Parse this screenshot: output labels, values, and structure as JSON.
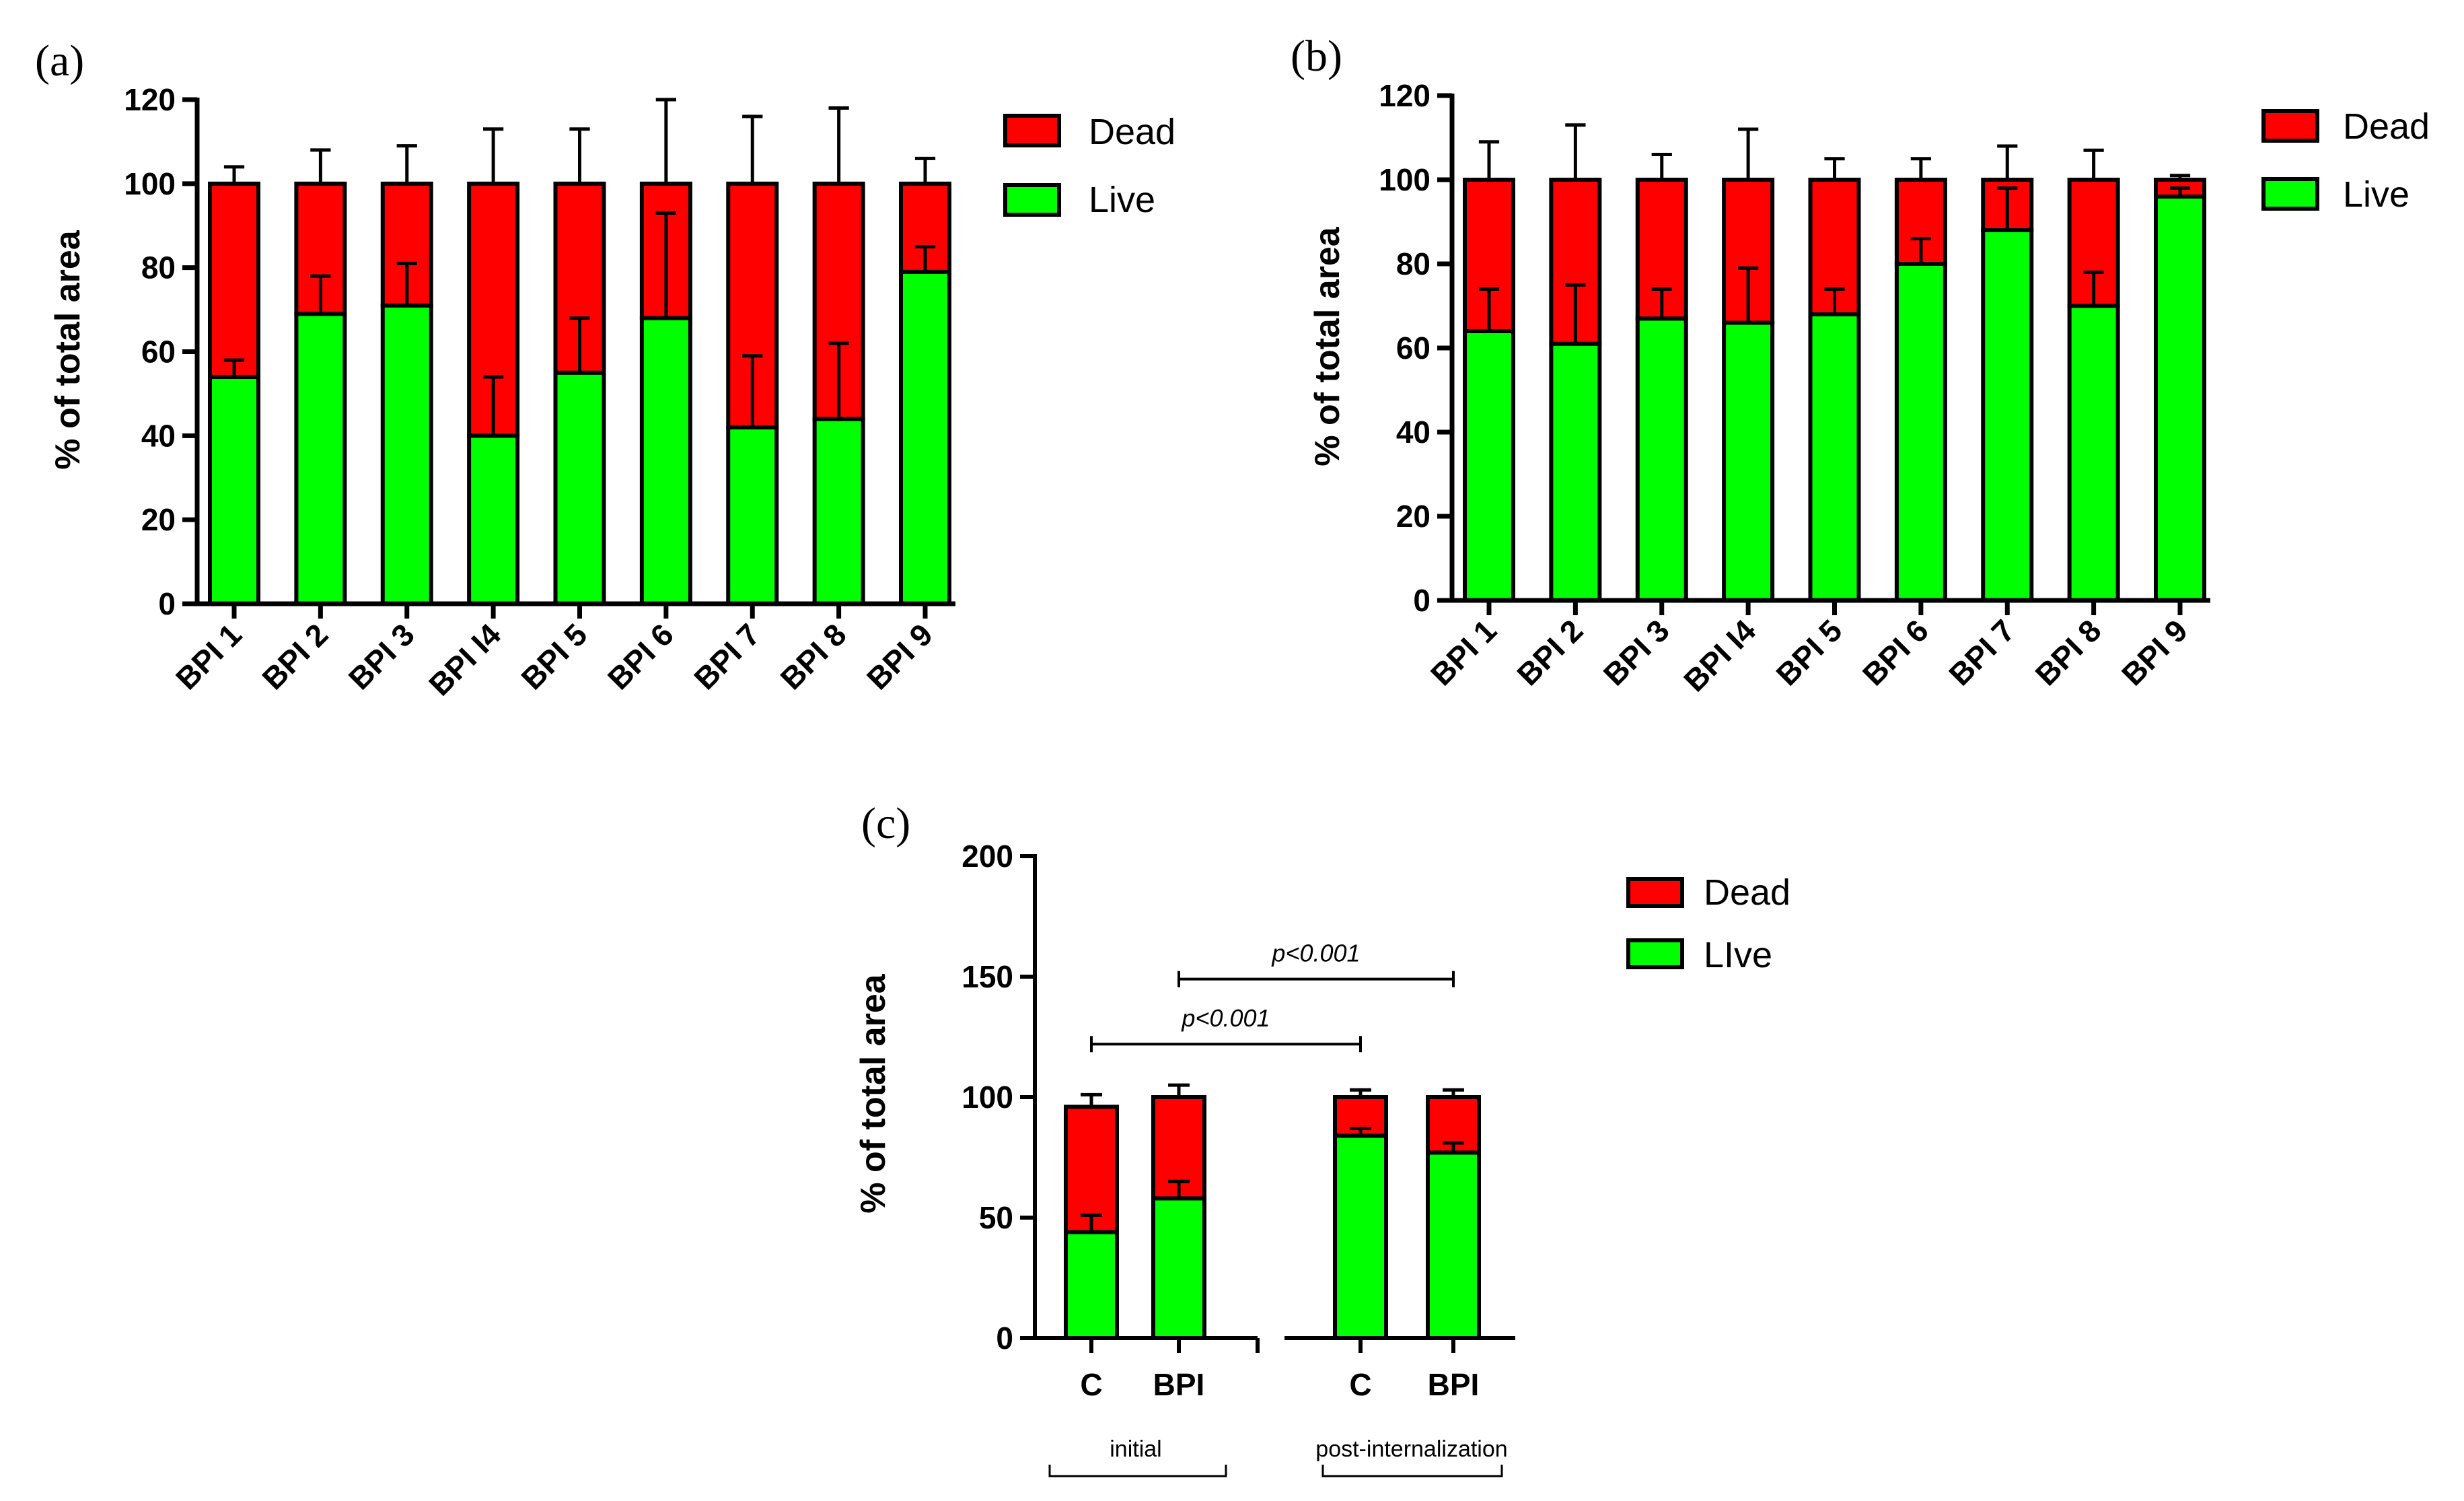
{
  "colors": {
    "dead": "#ff0000",
    "live": "#00ff00",
    "axis": "#000000"
  },
  "chart_data": [
    {
      "type": "bar",
      "stacked": true,
      "panel_label": "(a)",
      "title": "",
      "xlabel": "",
      "ylabel": "% of total area",
      "ylim": [
        0,
        120
      ],
      "yticks": [
        0,
        20,
        40,
        60,
        80,
        100,
        120
      ],
      "grid": false,
      "legend_position": "top-right",
      "categories": [
        "BPI 1",
        "BPI 2",
        "BPI 3",
        "BPI I4",
        "BPI 5",
        "BPI 6",
        "BPI 7",
        "BPI 8",
        "BPI 9"
      ],
      "series": [
        {
          "name": "Live",
          "values": [
            54,
            69,
            71,
            40,
            55,
            68,
            42,
            44,
            79
          ],
          "error": [
            4,
            9,
            10,
            14,
            13,
            25,
            17,
            18,
            6
          ]
        },
        {
          "name": "Dead",
          "values": [
            46,
            31,
            29,
            60,
            45,
            32,
            58,
            56,
            21
          ],
          "error": [
            4,
            8,
            9,
            13,
            13,
            20,
            16,
            18,
            6
          ]
        }
      ]
    },
    {
      "type": "bar",
      "stacked": true,
      "panel_label": "(b)",
      "title": "",
      "xlabel": "",
      "ylabel": "% of total area",
      "ylim": [
        0,
        120
      ],
      "yticks": [
        0,
        20,
        40,
        60,
        80,
        100,
        120
      ],
      "grid": false,
      "legend_position": "top-right",
      "categories": [
        "BPI 1",
        "BPI 2",
        "BPI 3",
        "BPI I4",
        "BPI 5",
        "BPI 6",
        "BPI 7",
        "BPI 8",
        "BPI 9"
      ],
      "series": [
        {
          "name": "Live",
          "values": [
            64,
            61,
            67,
            66,
            68,
            80,
            88,
            70,
            96
          ],
          "error": [
            10,
            14,
            7,
            13,
            6,
            6,
            10,
            8,
            2
          ]
        },
        {
          "name": "Dead",
          "values": [
            36,
            39,
            33,
            34,
            32,
            20,
            12,
            30,
            4
          ],
          "error": [
            9,
            13,
            6,
            12,
            5,
            5,
            8,
            7,
            1
          ]
        }
      ]
    },
    {
      "type": "bar",
      "stacked": true,
      "panel_label": "(c)",
      "title": "",
      "xlabel": "",
      "ylabel": "% of total area",
      "ylim": [
        0,
        200
      ],
      "yticks": [
        0,
        50,
        100,
        150,
        200
      ],
      "grid": false,
      "legend_position": "top-right",
      "categories": [
        "C",
        "BPI",
        "C",
        "BPI"
      ],
      "groups": [
        {
          "label": "initial",
          "categories": [
            0,
            1
          ]
        },
        {
          "label": "post-internalization",
          "categories": [
            2,
            3
          ]
        }
      ],
      "series": [
        {
          "name": "LIve",
          "values": [
            44,
            58,
            84,
            77
          ],
          "error": [
            7,
            7,
            3,
            4
          ]
        },
        {
          "name": "Dead",
          "values": [
            52,
            42,
            16,
            23
          ],
          "error": [
            5,
            5,
            3,
            3
          ]
        }
      ],
      "annotations": [
        {
          "text": "p<0.001",
          "from_category": 0,
          "to_category": 2,
          "y": 122
        },
        {
          "text": "p<0.001",
          "from_category": 1,
          "to_category": 3,
          "y": 149
        }
      ]
    }
  ]
}
